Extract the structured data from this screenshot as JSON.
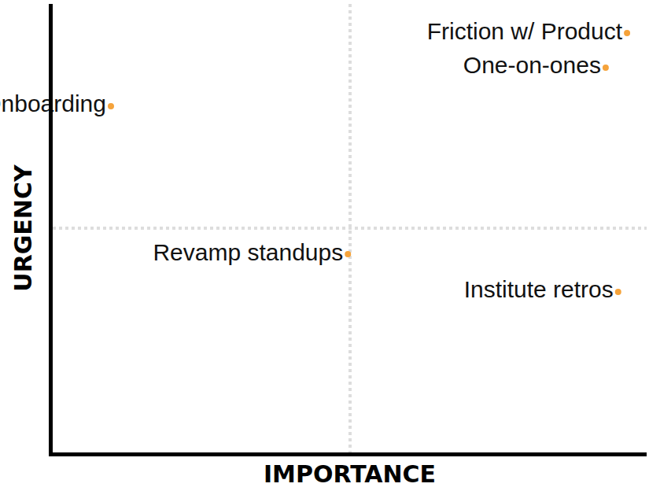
{
  "chart_data": {
    "type": "scatter",
    "x_label": "IMPORTANCE",
    "y_label": "URGENCY",
    "labels": [
      "Friction w/ Product",
      "One-on-ones",
      "Onboarding",
      "Revamp standups",
      "Institute retros"
    ],
    "x": [
      9.67,
      9.31,
      0.98,
      4.97,
      9.52
    ],
    "y": [
      9.35,
      8.58,
      7.72,
      4.42,
      3.58
    ],
    "color": "#f5a33b",
    "marker": "circle",
    "xlim": [
      0,
      10
    ],
    "ylim": [
      0,
      10
    ],
    "xticks": [
      5
    ],
    "yticks": [
      5
    ],
    "grid": true,
    "tick_labels": false
  }
}
